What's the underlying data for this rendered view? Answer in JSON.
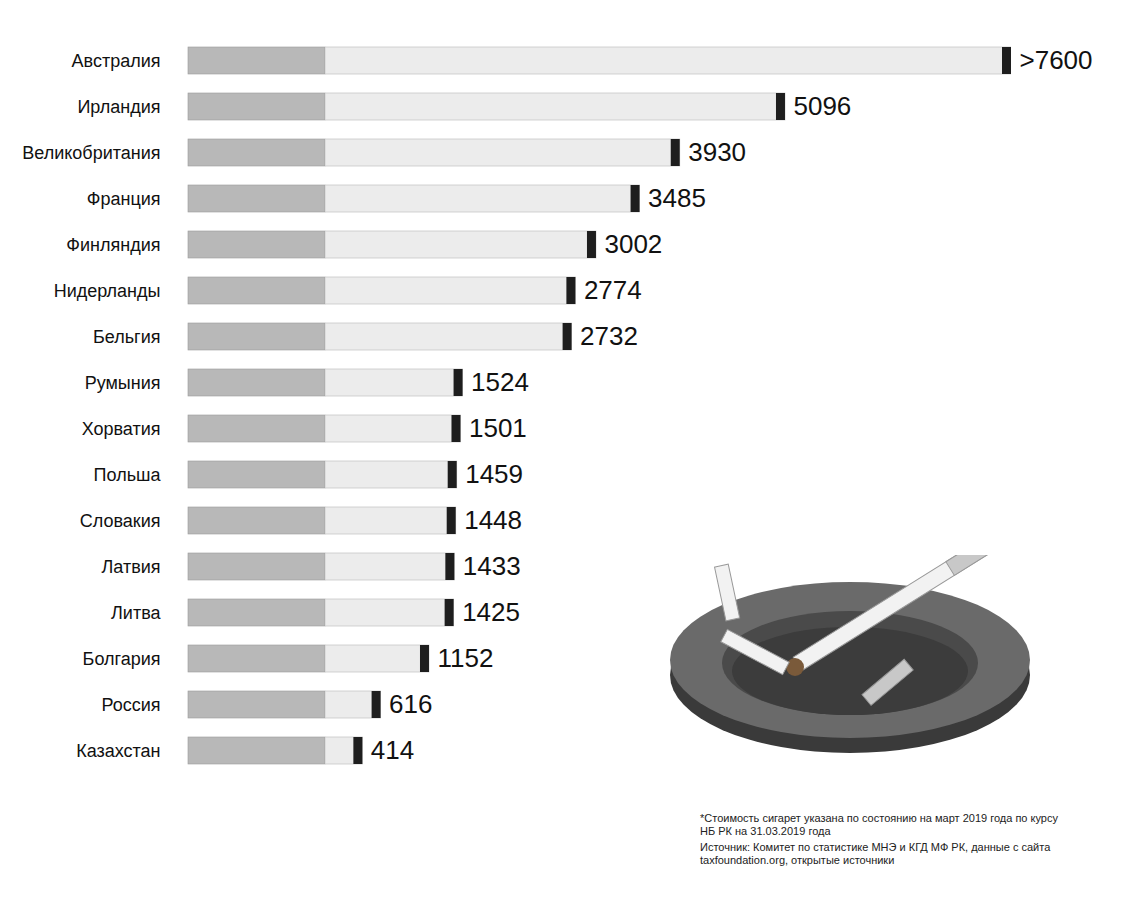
{
  "chart_data": {
    "type": "bar",
    "orientation": "horizontal",
    "categories": [
      "Австралия",
      "Ирландия",
      "Великобритания",
      "Франция",
      "Финляндия",
      "Нидерланды",
      "Бельгия",
      "Румыния",
      "Хорватия",
      "Польша",
      "Словакия",
      "Латвия",
      "Литва",
      "Болгария",
      "Россия",
      "Казахстан"
    ],
    "values": [
      7600,
      5096,
      3930,
      3485,
      3002,
      2774,
      2732,
      1524,
      1501,
      1459,
      1448,
      1433,
      1425,
      1152,
      616,
      414
    ],
    "value_labels": [
      ">7600",
      "5096",
      "3930",
      "3485",
      "3002",
      "2774",
      "2732",
      "1524",
      "1501",
      "1459",
      "1448",
      "1433",
      "1425",
      "1152",
      "616",
      "414"
    ],
    "color": "#ececec",
    "xlim": [
      0,
      7600
    ],
    "data_labels": true,
    "tick_labels": "y",
    "grid": false,
    "annotations": [
      "*Стоимость сигарет указана по состоянию на март 2019 года по курсу НБ РК на 31.03.2019 года",
      "Источник: Комитет по статистике МНЭ и КГД МФ РК, данные с сайта taxfoundation.org, открытые источники"
    ]
  }
}
